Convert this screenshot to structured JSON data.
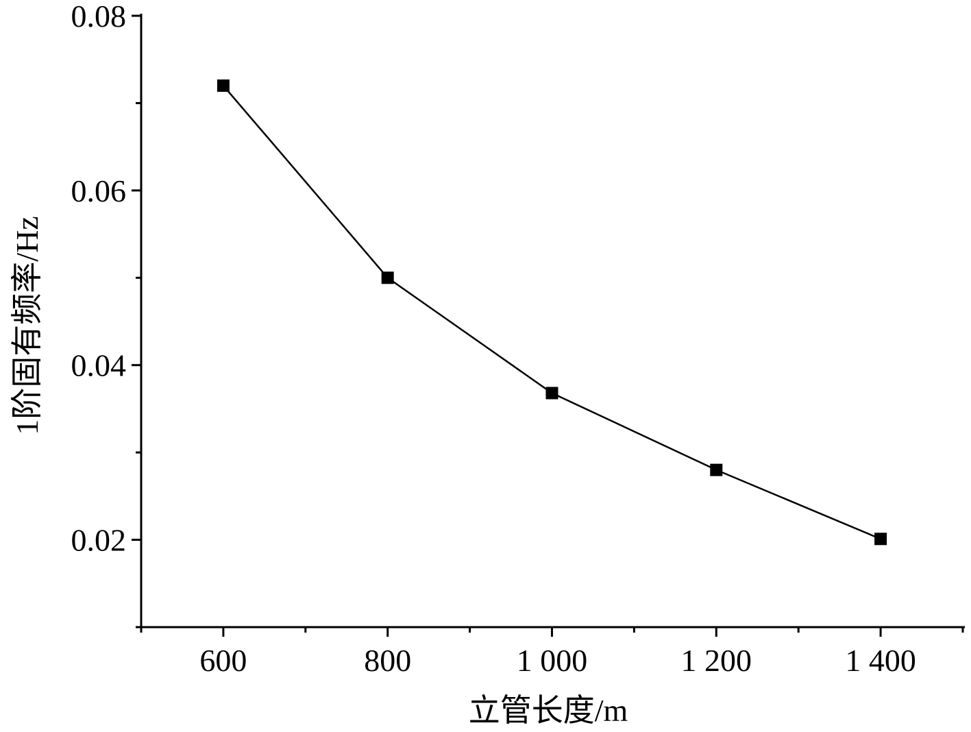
{
  "chart_data": {
    "type": "line",
    "title": "",
    "xlabel": "立管长度/m",
    "ylabel": "1阶固有频率/Hz",
    "xlim": [
      500,
      1500
    ],
    "ylim": [
      0.01,
      0.08
    ],
    "x_ticks": [
      600,
      800,
      1000,
      1200,
      1400
    ],
    "x_tick_labels": [
      "600",
      "800",
      "1 000",
      "1 200",
      "1 400"
    ],
    "x_minor_ticks": [
      500,
      700,
      900,
      1100,
      1300,
      1500
    ],
    "y_ticks": [
      0.02,
      0.04,
      0.06,
      0.08
    ],
    "y_tick_labels": [
      "0.02",
      "0.04",
      "0.06",
      "0.08"
    ],
    "y_minor_ticks": [
      0.01,
      0.03,
      0.05,
      0.07
    ],
    "grid": false,
    "legend": "none",
    "series": [
      {
        "marker": "square",
        "color": "#000000",
        "x": [
          600,
          800,
          1000,
          1200,
          1400
        ],
        "y": [
          0.072,
          0.05,
          0.0368,
          0.028,
          0.0201
        ]
      }
    ]
  }
}
